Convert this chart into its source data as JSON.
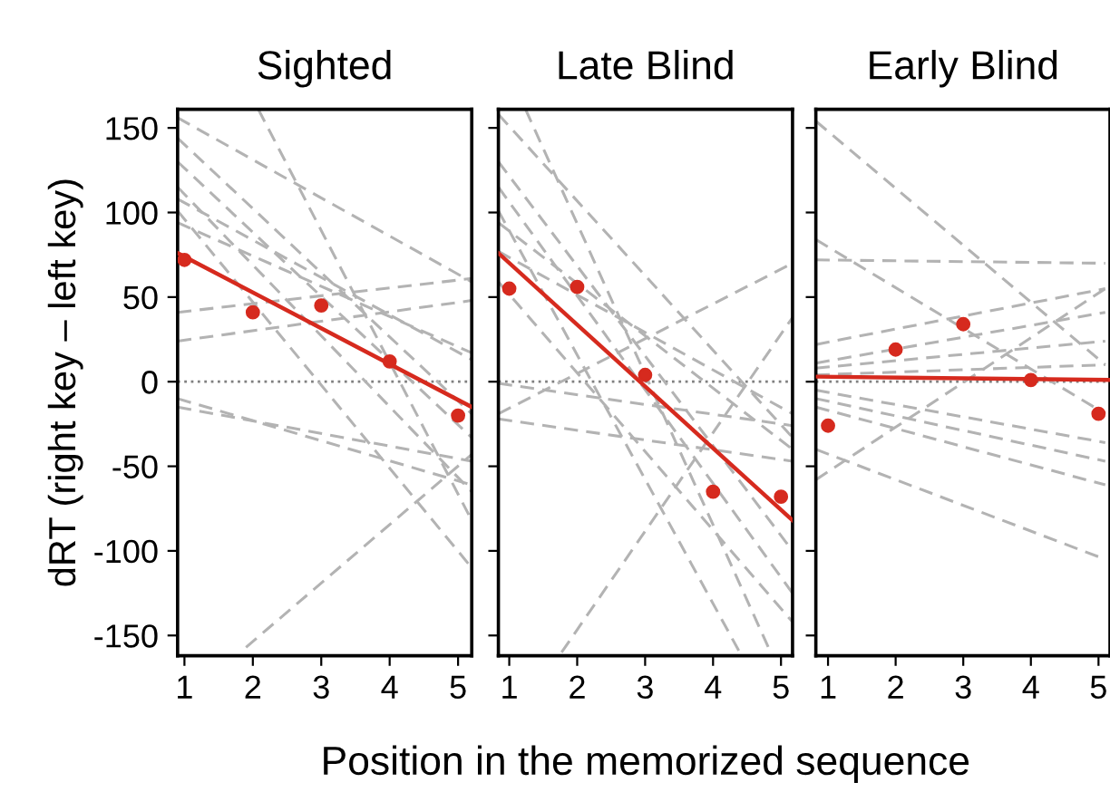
{
  "chart_data": [
    {
      "type": "line",
      "title": "Sighted",
      "ylabel": "dRT (right key – left key)",
      "xlim": [
        0.9,
        5.2
      ],
      "ylim": [
        -162,
        161
      ],
      "xticks": [
        1,
        2,
        3,
        4,
        5
      ],
      "yticks": [
        -150,
        -100,
        -50,
        0,
        50,
        100,
        150
      ],
      "grid": false,
      "ref_lines": [
        {
          "axis": "y",
          "value": 0,
          "color": "#808080",
          "line_style": "dotted"
        }
      ],
      "series": [
        {
          "type": "line",
          "color": "#b3b3b3",
          "line_style": "dashed",
          "x": [
            0.9,
            5.2
          ],
          "values": [
            156,
            59
          ]
        },
        {
          "type": "line",
          "color": "#b3b3b3",
          "line_style": "dashed",
          "x": [
            2.08,
            5.2
          ],
          "values": [
            161,
            -82
          ]
        },
        {
          "type": "line",
          "color": "#b3b3b3",
          "line_style": "dashed",
          "x": [
            0.9,
            5.2
          ],
          "values": [
            130,
            -33
          ]
        },
        {
          "type": "line",
          "color": "#b3b3b3",
          "line_style": "dashed",
          "x": [
            0.9,
            5.2
          ],
          "values": [
            115,
            -65
          ]
        },
        {
          "type": "line",
          "color": "#b3b3b3",
          "line_style": "dashed",
          "x": [
            0.9,
            5.2
          ],
          "values": [
            108,
            13
          ]
        },
        {
          "type": "line",
          "color": "#b3b3b3",
          "line_style": "dashed",
          "x": [
            0.9,
            5.2
          ],
          "values": [
            101,
            -110
          ]
        },
        {
          "type": "line",
          "color": "#b3b3b3",
          "line_style": "dashed",
          "x": [
            0.9,
            5.2
          ],
          "values": [
            41,
            61
          ]
        },
        {
          "type": "line",
          "color": "#b3b3b3",
          "line_style": "dashed",
          "x": [
            0.9,
            5.2
          ],
          "values": [
            24,
            48
          ]
        },
        {
          "type": "line",
          "color": "#b3b3b3",
          "line_style": "dashed",
          "x": [
            0.9,
            5.2
          ],
          "values": [
            -10,
            -61
          ]
        },
        {
          "type": "line",
          "color": "#b3b3b3",
          "line_style": "dashed",
          "x": [
            0.9,
            5.2
          ],
          "values": [
            -15,
            -47
          ]
        },
        {
          "type": "line",
          "color": "#b3b3b3",
          "line_style": "dashed",
          "x": [
            1.9,
            5.2
          ],
          "values": [
            -157,
            -43
          ]
        },
        {
          "type": "line",
          "color": "#b3b3b3",
          "line_style": "dashed",
          "x": [
            0.9,
            5.2
          ],
          "values": [
            144,
            -19
          ]
        },
        {
          "type": "line",
          "color": "#b3b3b3",
          "line_style": "dashed",
          "x": [
            0.9,
            5.2
          ],
          "values": [
            94,
            17
          ]
        },
        {
          "type": "line",
          "color": "#d62a1e",
          "line_style": "solid",
          "x": [
            0.9,
            5.2
          ],
          "values": [
            76,
            -15
          ]
        },
        {
          "type": "scatter",
          "color": "#d62a1e",
          "marker": "circle",
          "x": [
            1,
            2,
            3,
            4,
            5
          ],
          "values": [
            72,
            41,
            45,
            12,
            -20
          ]
        }
      ]
    },
    {
      "type": "line",
      "title": "Late Blind",
      "xlabel": "Position in the memorized sequence",
      "xlim": [
        0.84,
        5.17
      ],
      "ylim": [
        -162,
        161
      ],
      "xticks": [
        1,
        2,
        3,
        4,
        5
      ],
      "yticks": [
        -150,
        -100,
        -50,
        0,
        50,
        100,
        150
      ],
      "tick_labels": "x",
      "grid": false,
      "ref_lines": [
        {
          "axis": "y",
          "value": 0,
          "color": "#808080",
          "line_style": "dotted"
        }
      ],
      "series": [
        {
          "type": "line",
          "color": "#b3b3b3",
          "line_style": "dashed",
          "x": [
            0.84,
            5.17
          ],
          "values": [
            158,
            -33
          ]
        },
        {
          "type": "line",
          "color": "#b3b3b3",
          "line_style": "dashed",
          "x": [
            0.84,
            5.17
          ],
          "values": [
            130,
            -100
          ]
        },
        {
          "type": "line",
          "color": "#b3b3b3",
          "line_style": "dashed",
          "x": [
            0.84,
            5.17
          ],
          "values": [
            115,
            -125
          ]
        },
        {
          "type": "line",
          "color": "#b3b3b3",
          "line_style": "dashed",
          "x": [
            1.24,
            4.87
          ],
          "values": [
            161,
            -162
          ]
        },
        {
          "type": "line",
          "color": "#b3b3b3",
          "line_style": "dashed",
          "x": [
            0.84,
            5.17
          ],
          "values": [
            94,
            -40
          ]
        },
        {
          "type": "line",
          "color": "#b3b3b3",
          "line_style": "dashed",
          "x": [
            0.84,
            5.17
          ],
          "values": [
            -19,
            70
          ]
        },
        {
          "type": "line",
          "color": "#b3b3b3",
          "line_style": "dashed",
          "x": [
            0.84,
            5.17
          ],
          "values": [
            -22,
            -47
          ]
        },
        {
          "type": "line",
          "color": "#b3b3b3",
          "line_style": "dashed",
          "x": [
            1.77,
            5.17
          ],
          "values": [
            -160,
            38
          ]
        },
        {
          "type": "line",
          "color": "#b3b3b3",
          "line_style": "dashed",
          "x": [
            0.84,
            5.17
          ],
          "values": [
            77,
            -19
          ]
        },
        {
          "type": "line",
          "color": "#b3b3b3",
          "line_style": "dashed",
          "x": [
            0.84,
            5.17
          ],
          "values": [
            59,
            -142
          ]
        },
        {
          "type": "line",
          "color": "#b3b3b3",
          "line_style": "dashed",
          "x": [
            0.84,
            4.42
          ],
          "values": [
            101,
            -162
          ]
        },
        {
          "type": "line",
          "color": "#b3b3b3",
          "line_style": "dashed",
          "x": [
            0.84,
            5.17
          ],
          "values": [
            -1,
            -26
          ]
        },
        {
          "type": "line",
          "color": "#d62a1e",
          "line_style": "solid",
          "x": [
            0.84,
            5.17
          ],
          "values": [
            76,
            -82
          ]
        },
        {
          "type": "scatter",
          "color": "#d62a1e",
          "marker": "circle",
          "x": [
            1,
            2,
            3,
            4,
            5
          ],
          "values": [
            55,
            56,
            4,
            -65,
            -68
          ]
        }
      ]
    },
    {
      "type": "line",
      "title": "Early Blind",
      "xlim": [
        0.82,
        5.17
      ],
      "ylim": [
        -162,
        161
      ],
      "xticks": [
        1,
        2,
        3,
        4,
        5
      ],
      "yticks": [
        -150,
        -100,
        -50,
        0,
        50,
        100,
        150
      ],
      "tick_labels": "x",
      "grid": false,
      "ref_lines": [
        {
          "axis": "y",
          "value": 0,
          "color": "#808080",
          "line_style": "dotted"
        }
      ],
      "series": [
        {
          "type": "line",
          "color": "#b3b3b3",
          "line_style": "dashed",
          "x": [
            0.82,
            5.1
          ],
          "values": [
            154,
            10
          ]
        },
        {
          "type": "line",
          "color": "#b3b3b3",
          "line_style": "dashed",
          "x": [
            0.82,
            5.1
          ],
          "values": [
            84,
            -19
          ]
        },
        {
          "type": "line",
          "color": "#b3b3b3",
          "line_style": "dashed",
          "x": [
            0.82,
            5.1
          ],
          "values": [
            72,
            70
          ]
        },
        {
          "type": "line",
          "color": "#b3b3b3",
          "line_style": "dashed",
          "x": [
            0.82,
            5.1
          ],
          "values": [
            22,
            55
          ]
        },
        {
          "type": "line",
          "color": "#b3b3b3",
          "line_style": "dashed",
          "x": [
            0.82,
            5.1
          ],
          "values": [
            11,
            41
          ]
        },
        {
          "type": "line",
          "color": "#b3b3b3",
          "line_style": "dashed",
          "x": [
            0.82,
            5.1
          ],
          "values": [
            8,
            24
          ]
        },
        {
          "type": "line",
          "color": "#b3b3b3",
          "line_style": "dashed",
          "x": [
            0.82,
            5.1
          ],
          "values": [
            -10,
            -47
          ]
        },
        {
          "type": "line",
          "color": "#b3b3b3",
          "line_style": "dashed",
          "x": [
            0.82,
            5.1
          ],
          "values": [
            -15,
            -61
          ]
        },
        {
          "type": "line",
          "color": "#b3b3b3",
          "line_style": "dashed",
          "x": [
            0.82,
            5.1
          ],
          "values": [
            -40,
            -105
          ]
        },
        {
          "type": "line",
          "color": "#b3b3b3",
          "line_style": "dashed",
          "x": [
            0.82,
            5.1
          ],
          "values": [
            -58,
            55
          ]
        },
        {
          "type": "line",
          "color": "#b3b3b3",
          "line_style": "dashed",
          "x": [
            0.82,
            5.1
          ],
          "values": [
            -5,
            -36
          ]
        },
        {
          "type": "line",
          "color": "#b3b3b3",
          "line_style": "dashed",
          "x": [
            0.82,
            5.1
          ],
          "values": [
            4,
            10
          ]
        },
        {
          "type": "line",
          "color": "#d62a1e",
          "line_style": "solid",
          "x": [
            0.82,
            5.17
          ],
          "values": [
            3,
            1
          ]
        },
        {
          "type": "scatter",
          "color": "#d62a1e",
          "marker": "circle",
          "x": [
            1,
            2,
            3,
            4,
            5
          ],
          "values": [
            -26,
            19,
            34,
            1,
            -19
          ]
        }
      ]
    }
  ]
}
